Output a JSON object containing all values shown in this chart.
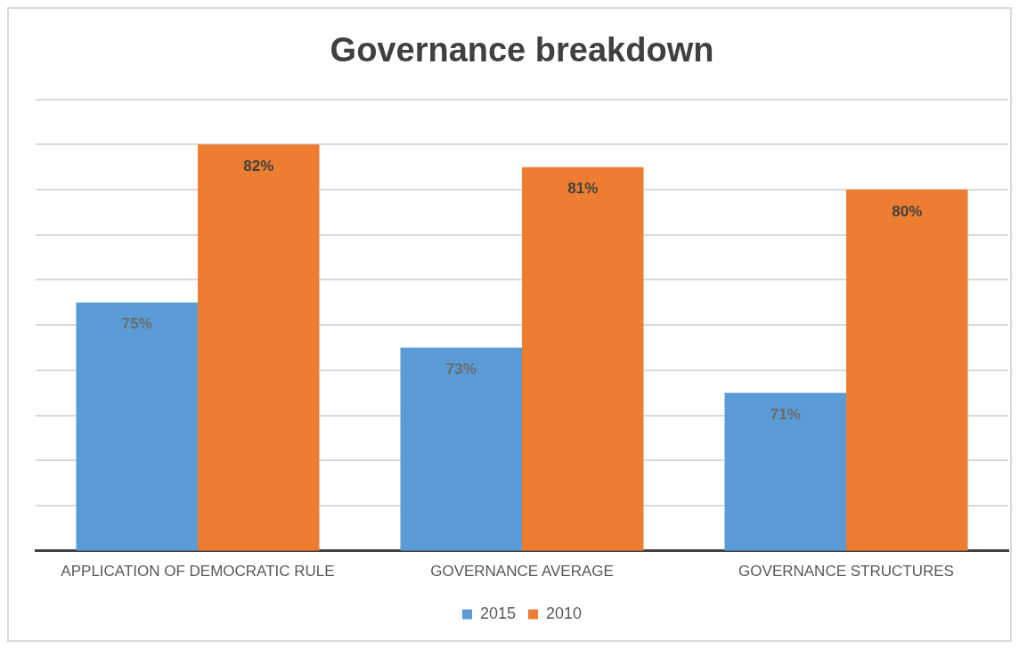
{
  "chart_data": {
    "type": "bar",
    "title": "Governance breakdown",
    "categories": [
      "APPLICATION OF DEMOCRATIC RULE",
      "GOVERNANCE AVERAGE",
      "GOVERNANCE STRUCTURES"
    ],
    "series": [
      {
        "name": "2015",
        "color": "#5b9bd5",
        "values": [
          75,
          73,
          71
        ],
        "value_labels": [
          "75%",
          "73%",
          "71%"
        ]
      },
      {
        "name": "2010",
        "color": "#ed7d31",
        "values": [
          82,
          81,
          80
        ],
        "value_labels": [
          "82%",
          "81%",
          "80%"
        ]
      }
    ],
    "ylim": [
      64,
      84
    ],
    "yticks": [
      {
        "value": 64,
        "label": null
      },
      {
        "value": 66,
        "label": null
      },
      {
        "value": 68,
        "label": null
      },
      {
        "value": 70,
        "label": null
      },
      {
        "value": 72,
        "label": null
      },
      {
        "value": 74,
        "label": null
      },
      {
        "value": 76,
        "label": null
      },
      {
        "value": 78,
        "label": null
      },
      {
        "value": 80,
        "label": null
      },
      {
        "value": 82,
        "label": null
      },
      {
        "value": 84,
        "label": null
      }
    ],
    "grid": "y",
    "tick_labels": "x",
    "legend": "bottom"
  }
}
